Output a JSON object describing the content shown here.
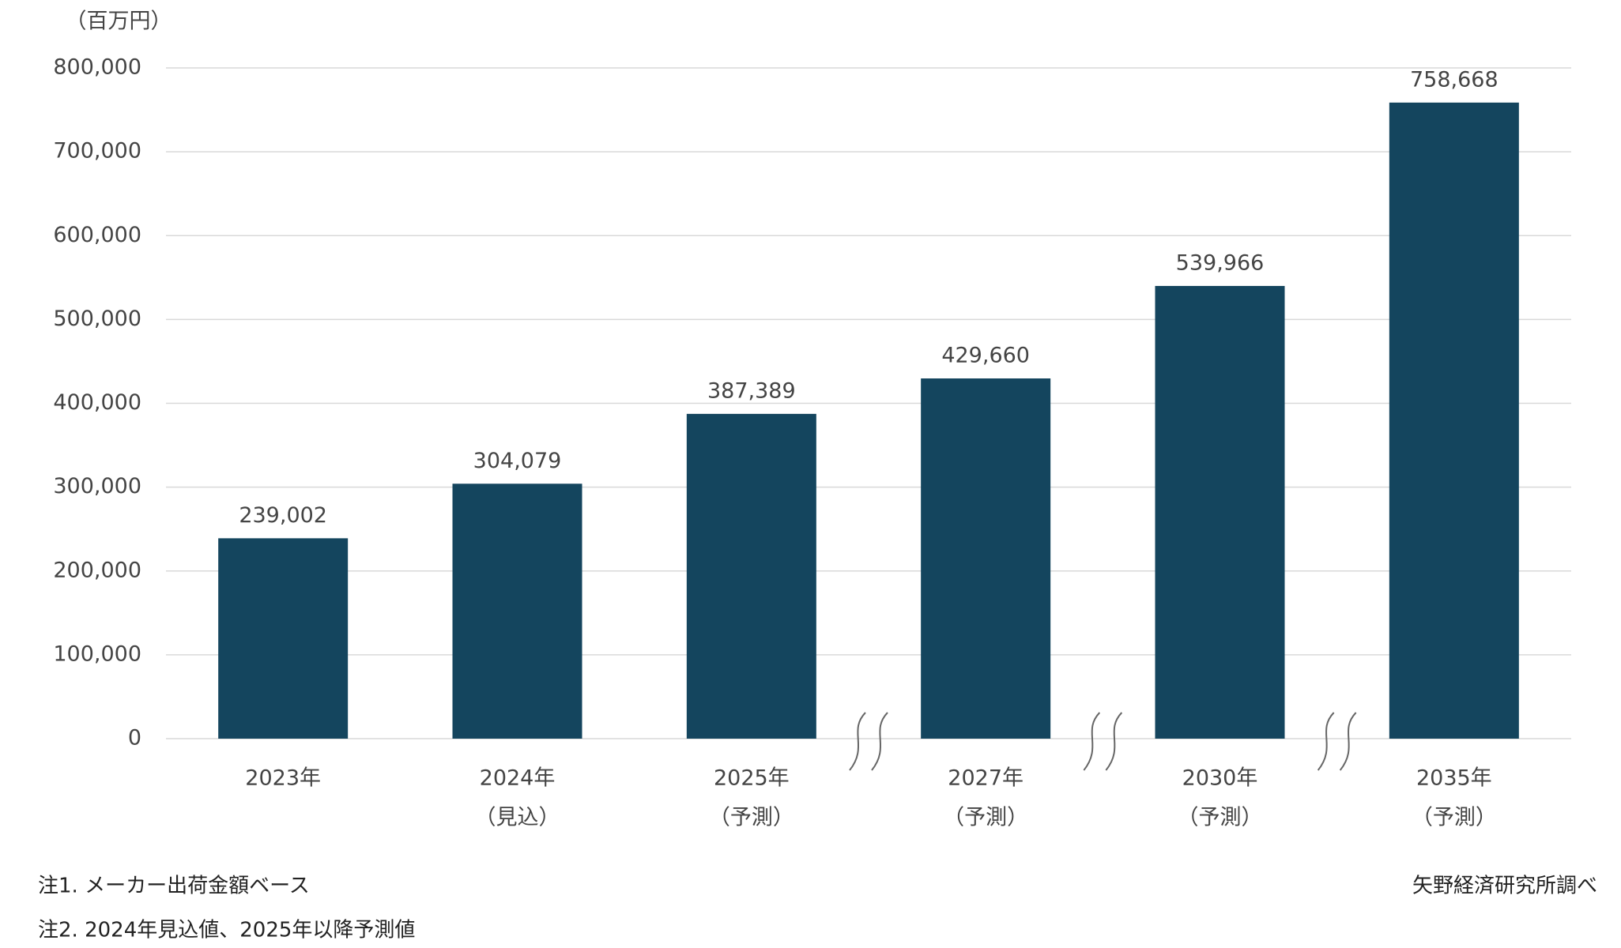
{
  "chart_data": {
    "type": "bar",
    "y_unit": "（百万円）",
    "categories": [
      "2023年",
      "2024年",
      "2025年",
      "2027年",
      "2030年",
      "2035年"
    ],
    "category_notes": [
      null,
      "（見込）",
      "（予測）",
      "（予測）",
      "（予測）",
      "（予測）"
    ],
    "values": [
      239002,
      304079,
      387389,
      429660,
      539966,
      758668
    ],
    "value_labels": [
      "239,002",
      "304,079",
      "387,389",
      "429,660",
      "539,966",
      "758,668"
    ],
    "color": "#14455e",
    "ylim": [
      0,
      800000
    ],
    "yticks": [
      0,
      {
        "value": 100000,
        "label": "100,000"
      },
      {
        "value": 200000,
        "label": "200,000"
      },
      {
        "value": 300000,
        "label": "300,000"
      },
      {
        "value": 400000,
        "label": "400,000"
      },
      {
        "value": 500000,
        "label": "500,000"
      },
      {
        "value": 600000,
        "label": "600,000"
      },
      {
        "value": 700000,
        "label": "700,000"
      },
      {
        "value": 800000,
        "label": "800,000"
      }
    ],
    "grid": true,
    "notes": [
      "注1. メーカー出荷金額ベース",
      "注2. 2024年見込値、2025年以降予測値"
    ],
    "source": "矢野経済研究所調べ"
  }
}
